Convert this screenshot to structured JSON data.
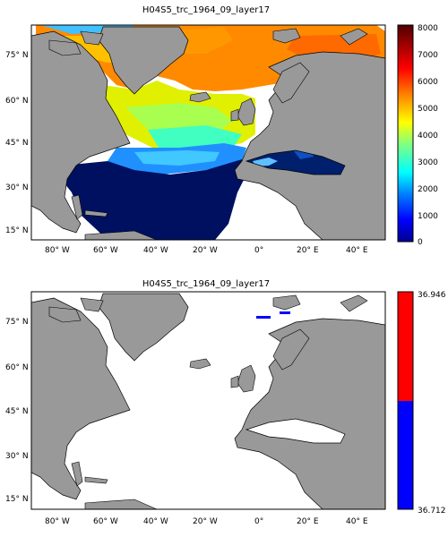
{
  "panel1": {
    "title": "H04S5_trc_1964_09_layer17",
    "lon_ticks": [
      "80° W",
      "60° W",
      "40° W",
      "20° W",
      "0°",
      "20° E",
      "40° E"
    ],
    "lat_ticks": [
      "75° N",
      "60° N",
      "45° N",
      "30° N",
      "15° N"
    ],
    "colorbar": {
      "colormap": "jet-like (dark blue → cyan → green → yellow → orange → dark red)",
      "ticks": [
        "8000",
        "7000",
        "6000",
        "5000",
        "4000",
        "3000",
        "2000",
        "1000",
        "0"
      ],
      "range": [
        0,
        8000
      ]
    }
  },
  "panel2": {
    "title": "H04S5_trc_1964_09_layer17",
    "lon_ticks": [
      "80° W",
      "60° W",
      "40° W",
      "20° W",
      "0°",
      "20° E",
      "40° E"
    ],
    "lat_ticks": [
      "75° N",
      "60° N",
      "45° N",
      "30° N",
      "15° N"
    ],
    "colorbar": {
      "ticks": [
        "36.946",
        "36.712"
      ],
      "segments": [
        {
          "color": "#ff0000"
        },
        {
          "color": "#0000ff"
        }
      ],
      "range": [
        36.712,
        36.946
      ]
    }
  },
  "colors": {
    "land": "#999999",
    "ocean_nodata": "#ffffff",
    "dark_blue": "#001060"
  }
}
